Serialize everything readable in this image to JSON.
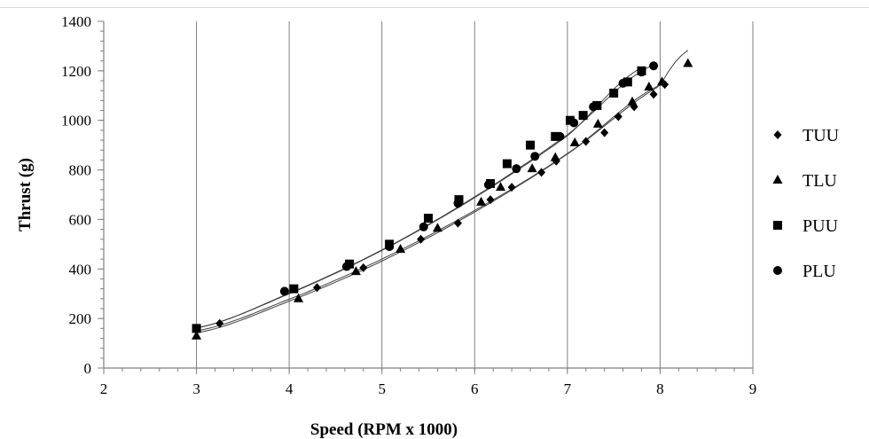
{
  "chart_data": {
    "type": "scatter",
    "title": "",
    "xlabel": "Speed  (RPM x 1000)",
    "ylabel": "Thrust (g)",
    "xlim": [
      2,
      9
    ],
    "ylim": [
      0,
      1400
    ],
    "xticks": [
      2,
      3,
      4,
      5,
      6,
      7,
      8,
      9
    ],
    "yticks": [
      0,
      200,
      400,
      600,
      800,
      1000,
      1200,
      1400
    ],
    "grid": {
      "vertical": true,
      "horizontal": false,
      "minor_ticks": true
    },
    "legend_position": "right",
    "series": [
      {
        "name": "TUU",
        "marker": "diamond",
        "x": [
          3.25,
          4.3,
          4.8,
          5.42,
          5.82,
          6.17,
          6.4,
          6.72,
          6.88,
          7.2,
          7.4,
          7.55,
          7.72,
          7.93,
          8.05
        ],
        "y": [
          180,
          325,
          405,
          520,
          585,
          680,
          730,
          790,
          835,
          915,
          950,
          1015,
          1055,
          1105,
          1145
        ],
        "fit": [
          [
            3.0,
            150
          ],
          [
            4.0,
            278
          ],
          [
            5.0,
            440
          ],
          [
            6.0,
            636
          ],
          [
            7.0,
            866
          ],
          [
            8.05,
            1150
          ]
        ]
      },
      {
        "name": "TLU",
        "marker": "triangle",
        "x": [
          3.0,
          4.1,
          4.72,
          5.2,
          5.6,
          6.07,
          6.28,
          6.62,
          6.87,
          7.08,
          7.33,
          7.7,
          7.88,
          8.02,
          8.3
        ],
        "y": [
          130,
          280,
          390,
          480,
          565,
          670,
          730,
          805,
          850,
          910,
          985,
          1075,
          1135,
          1155,
          1230
        ],
        "fit": [
          [
            3.0,
            142
          ],
          [
            4.0,
            270
          ],
          [
            5.0,
            432
          ],
          [
            6.0,
            630
          ],
          [
            7.0,
            864
          ],
          [
            8.0,
            1140
          ],
          [
            8.3,
            1283
          ]
        ]
      },
      {
        "name": "PUU",
        "marker": "square",
        "x": [
          3.0,
          4.05,
          4.65,
          5.08,
          5.5,
          5.83,
          6.17,
          6.35,
          6.6,
          6.87,
          7.03,
          7.17,
          7.32,
          7.5,
          7.65,
          7.8
        ],
        "y": [
          160,
          320,
          420,
          500,
          605,
          680,
          745,
          825,
          900,
          935,
          1000,
          1020,
          1060,
          1110,
          1155,
          1200
        ],
        "fit": [
          [
            3.0,
            162
          ],
          [
            4.0,
            300
          ],
          [
            5.0,
            475
          ],
          [
            6.0,
            688
          ],
          [
            7.0,
            937
          ],
          [
            7.82,
            1216
          ]
        ]
      },
      {
        "name": "PLU",
        "marker": "circle",
        "x": [
          3.95,
          4.62,
          5.08,
          5.45,
          5.82,
          6.15,
          6.45,
          6.65,
          6.92,
          7.07,
          7.28,
          7.6,
          7.8,
          7.93
        ],
        "y": [
          310,
          410,
          490,
          570,
          665,
          740,
          805,
          855,
          935,
          990,
          1055,
          1150,
          1195,
          1220
        ],
        "fit": [
          [
            3.0,
            162
          ],
          [
            4.0,
            302
          ],
          [
            5.0,
            477
          ],
          [
            6.0,
            691
          ],
          [
            7.0,
            942
          ],
          [
            7.92,
            1222
          ]
        ]
      }
    ]
  },
  "colors": {
    "axis": "#808080",
    "grid": "#808080",
    "marker": "#000000",
    "fit_line": "#404040",
    "background": "#ffffff"
  }
}
